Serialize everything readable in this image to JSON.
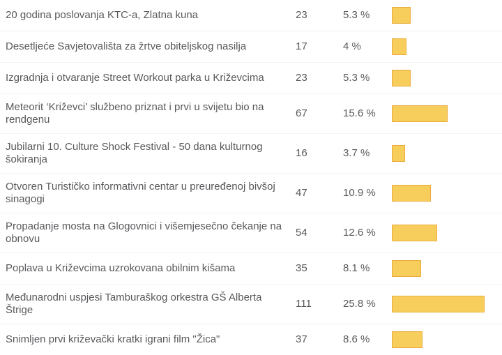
{
  "poll": {
    "bar_fill_color": "#f7ce5b",
    "bar_border_color": "#eaac3b",
    "text_color": "#58595c",
    "separator_color": "#f4f4f4",
    "max_percent": 25.8,
    "rows": [
      {
        "title": "20 godina poslovanja KTC-a, Zlatna kuna",
        "count": "23",
        "percent_label": "5.3 %",
        "percent": 5.3
      },
      {
        "title": "Desetljeće Savjetovališta za žrtve obiteljskog nasilja",
        "count": "17",
        "percent_label": "4 %",
        "percent": 4
      },
      {
        "title": "Izgradnja i otvaranje Street Workout parka u Križevcima",
        "count": "23",
        "percent_label": "5.3 %",
        "percent": 5.3
      },
      {
        "title": "Meteorit ‘Križevci’ službeno priznat i prvi u svijetu bio na rendgenu",
        "count": "67",
        "percent_label": "15.6 %",
        "percent": 15.6
      },
      {
        "title": "Jubilarni 10. Culture Shock Festival - 50 dana kulturnog šokiranja",
        "count": "16",
        "percent_label": "3.7 %",
        "percent": 3.7
      },
      {
        "title": "Otvoren Turističko informativni centar u preuređenoj bivšoj sinagogi",
        "count": "47",
        "percent_label": "10.9 %",
        "percent": 10.9
      },
      {
        "title": "Propadanje mosta na Glogovnici i višemjesečno čekanje na obnovu",
        "count": "54",
        "percent_label": "12.6 %",
        "percent": 12.6
      },
      {
        "title": "Poplava u Križevcima uzrokovana obilnim kišama",
        "count": "35",
        "percent_label": "8.1 %",
        "percent": 8.1
      },
      {
        "title": "Međunarodni uspjesi Tamburaškog orkestra GŠ Alberta Štrige",
        "count": "111",
        "percent_label": "25.8 %",
        "percent": 25.8
      },
      {
        "title": "Snimljen prvi križevački kratki igrani film \"Žica\"",
        "count": "37",
        "percent_label": "8.6 %",
        "percent": 8.6
      }
    ]
  },
  "chart_data": {
    "type": "bar",
    "orientation": "horizontal",
    "title": "",
    "xlabel": "",
    "ylabel": "",
    "categories": [
      "20 godina poslovanja KTC-a, Zlatna kuna",
      "Desetljeće Savjetovališta za žrtve obiteljskog nasilja",
      "Izgradnja i otvaranje Street Workout parka u Križevcima",
      "Meteorit ‘Križevci’ službeno priznat i prvi u svijetu bio na rendgenu",
      "Jubilarni 10. Culture Shock Festival - 50 dana kulturnog šokiranja",
      "Otvoren Turističko informativni centar u preuređenoj bivšoj sinagogi",
      "Propadanje mosta na Glogovnici i višemjesečno čekanje na obnovu",
      "Poplava u Križevcima uzrokovana obilnim kišama",
      "Međunarodni uspjesi Tamburaškog orkestra GŠ Alberta Štrige",
      "Snimljen prvi križevački kratki igrani film \"Žica\""
    ],
    "series": [
      {
        "name": "votes",
        "values": [
          23,
          17,
          23,
          67,
          16,
          47,
          54,
          35,
          111,
          37
        ]
      },
      {
        "name": "percent",
        "values": [
          5.3,
          4,
          5.3,
          15.6,
          3.7,
          10.9,
          12.6,
          8.1,
          25.8,
          8.6
        ]
      }
    ],
    "value_labels_shown": true,
    "axis_shown": false,
    "grid": false,
    "legend": "none",
    "bar_color": "#f7ce5b"
  }
}
